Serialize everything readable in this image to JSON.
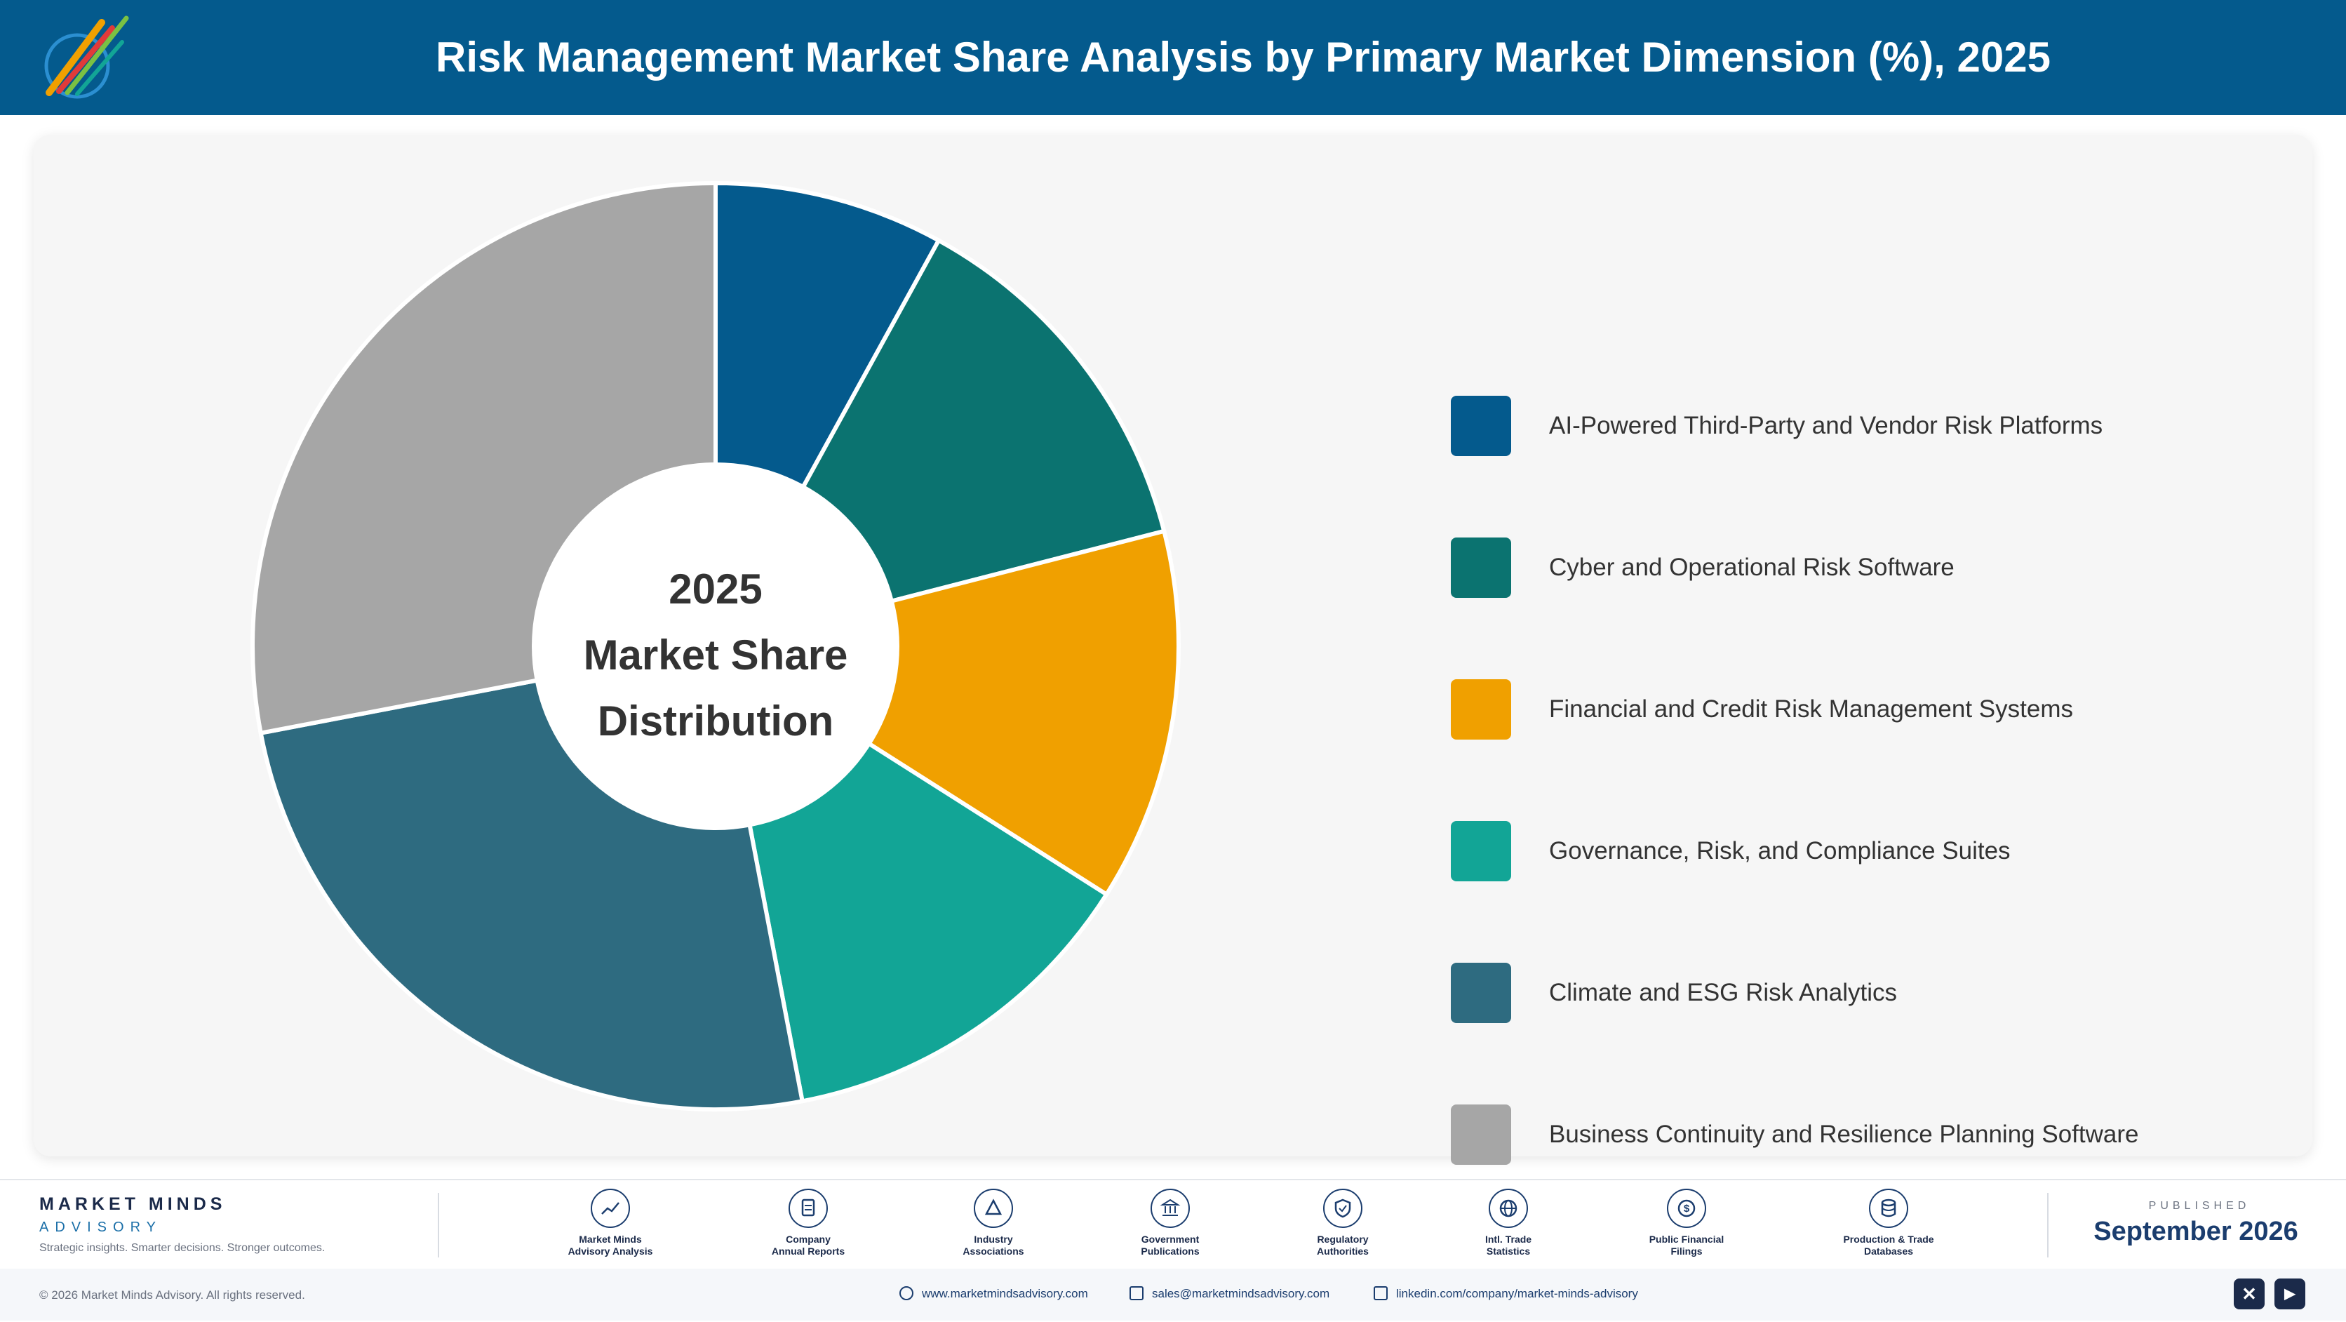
{
  "header": {
    "title": "Risk Management Market Share Analysis by Primary Market Dimension (%), 2025",
    "logo_icon": "company-logo-icon"
  },
  "chart_data": {
    "type": "pie",
    "center_label": [
      "2025",
      "Market Share",
      "Distribution"
    ],
    "categories": [
      "AI-Powered Third-Party and Vendor Risk Platforms",
      "Cyber and Operational Risk Software",
      "Financial and Credit Risk Management Systems",
      "Governance, Risk, and Compliance Suites",
      "Climate and ESG Risk Analytics",
      "Business Continuity and Resilience Planning Software"
    ],
    "values": [
      8,
      13,
      13,
      13,
      25,
      28
    ],
    "colors": [
      "#045a8d",
      "#0b7370",
      "#f0a000",
      "#12a596",
      "#2e6b80",
      "#a6a6a6"
    ],
    "legend_position": "right"
  },
  "footer": {
    "brand_name": "MARKET MINDS",
    "brand_sub": "ADVISORY",
    "brand_tagline": "Strategic insights. Smarter decisions. Stronger outcomes.",
    "sources": [
      {
        "line1": "Market Minds",
        "line2": "Advisory Analysis",
        "icon": "trend-chart-icon"
      },
      {
        "line1": "Company",
        "line2": "Annual Reports",
        "icon": "document-icon"
      },
      {
        "line1": "Industry",
        "line2": "Associations",
        "icon": "network-icon"
      },
      {
        "line1": "Government",
        "line2": "Publications",
        "icon": "government-building-icon"
      },
      {
        "line1": "Regulatory",
        "line2": "Authorities",
        "icon": "shield-check-icon"
      },
      {
        "line1": "Intl. Trade",
        "line2": "Statistics",
        "icon": "globe-icon"
      },
      {
        "line1": "Public Financial",
        "line2": "Filings",
        "icon": "dollar-coin-icon"
      },
      {
        "line1": "Production & Trade",
        "line2": "Databases",
        "icon": "database-icon"
      }
    ],
    "published_label": "PUBLISHED",
    "published_date": "September 2026",
    "copyright": "© 2026 Market Minds Advisory. All rights reserved.",
    "website": "www.marketmindsadvisory.com",
    "email": "sales@marketmindsadvisory.com",
    "linkedin": "linkedin.com/company/market-minds-advisory",
    "social": [
      {
        "icon": "x-twitter-icon",
        "glyph": "✕"
      },
      {
        "icon": "youtube-icon",
        "glyph": "▶"
      }
    ]
  }
}
